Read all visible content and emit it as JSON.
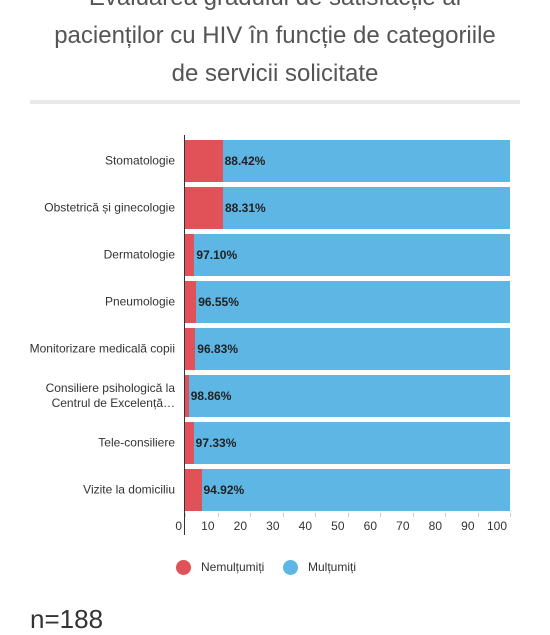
{
  "chart_data": {
    "type": "stacked-bar-horizontal",
    "title": "Evaluarea gradului de satisfacție al pacienților cu HIV în funcție de categoriile de servicii solicitate",
    "categories": [
      "Stomatologie",
      "Obstetrică și ginecologie",
      "Dermatologie",
      "Pneumologie",
      "Monitorizare medicală copii",
      "Consiliere psihologică la Centrul de Excelență…",
      "Tele-consiliere",
      "Vizite la domiciliu"
    ],
    "series": [
      {
        "name": "Nemulțumiți",
        "color": "#e05257",
        "values": [
          11.58,
          11.69,
          2.9,
          3.45,
          3.17,
          1.14,
          2.67,
          5.08
        ]
      },
      {
        "name": "Mulțumiți",
        "color": "#5db6e4",
        "values": [
          88.42,
          88.31,
          97.1,
          96.55,
          96.83,
          98.86,
          97.33,
          94.92
        ],
        "value_labels": [
          "88.42%",
          "88.31%",
          "97.10%",
          "96.55%",
          "96.83%",
          "98.86%",
          "97.33%",
          "94.92%"
        ]
      }
    ],
    "xlim": [
      0,
      100
    ],
    "xticks": [
      0,
      10,
      20,
      30,
      40,
      50,
      60,
      70,
      80,
      90,
      100
    ],
    "note": "n=188"
  }
}
